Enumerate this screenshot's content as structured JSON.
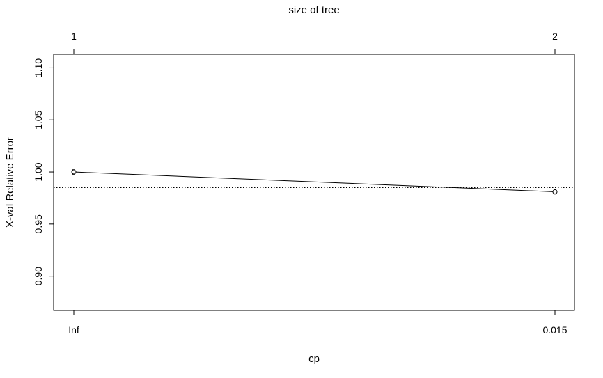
{
  "chart_data": {
    "type": "line",
    "title": "",
    "xlabel": "cp",
    "ylabel": "X-val Relative Error",
    "top_axis_label": "size of tree",
    "x_categories": [
      "Inf",
      "0.015"
    ],
    "top_categories": [
      "1",
      "2"
    ],
    "ylim": [
      0.867,
      1.113
    ],
    "yticks": [
      0.9,
      0.95,
      1.0,
      1.05,
      1.1
    ],
    "ytick_labels": [
      "0.90",
      "0.95",
      "1.00",
      "1.05",
      "1.10"
    ],
    "series": [
      {
        "values": [
          1.0,
          0.981
        ],
        "errors": [
          0.0022,
          0.0022
        ]
      }
    ],
    "reference_line": {
      "y": 0.985,
      "style": "dotted"
    },
    "grid": false,
    "legend": "none"
  }
}
